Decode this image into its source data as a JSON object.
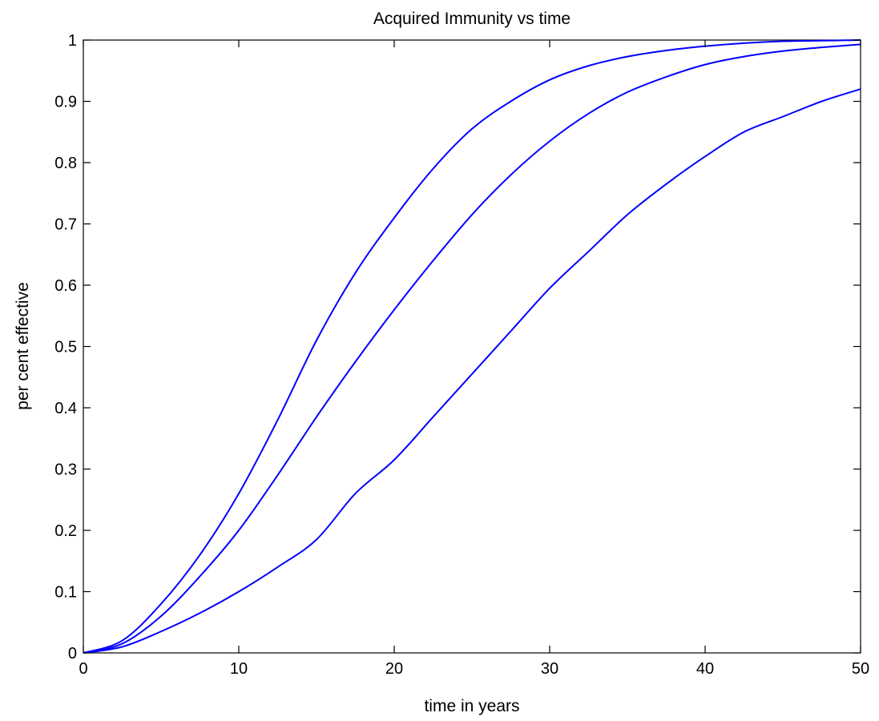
{
  "chart_data": {
    "type": "line",
    "title": "Acquired Immunity vs time",
    "xlabel": "time in years",
    "ylabel": "per cent effective",
    "xlim": [
      0,
      50
    ],
    "ylim": [
      0,
      1
    ],
    "xticks": [
      0,
      10,
      20,
      30,
      40,
      50
    ],
    "xtick_labels": [
      "0",
      "10",
      "20",
      "30",
      "40",
      "50"
    ],
    "yticks": [
      0,
      0.1,
      0.2,
      0.3,
      0.4,
      0.5,
      0.6,
      0.7,
      0.8,
      0.9,
      1
    ],
    "ytick_labels": [
      "0",
      "0.1",
      "0.2",
      "0.3",
      "0.4",
      "0.5",
      "0.6",
      "0.7",
      "0.8",
      "0.9",
      "1"
    ],
    "grid": false,
    "line_color": "#0000ff",
    "series": [
      {
        "x": [
          0,
          2.5,
          5,
          7.5,
          10,
          12.5,
          15,
          17.5,
          20,
          22.5,
          25,
          27.5,
          30,
          32.5,
          35,
          37.5,
          40,
          42.5,
          45,
          47.5,
          50
        ],
        "y": [
          0,
          0.02,
          0.08,
          0.16,
          0.26,
          0.38,
          0.51,
          0.62,
          0.71,
          0.79,
          0.855,
          0.9,
          0.935,
          0.958,
          0.973,
          0.983,
          0.99,
          0.995,
          0.998,
          0.999,
          1.0
        ]
      },
      {
        "x": [
          0,
          2.5,
          5,
          7.5,
          10,
          12.5,
          15,
          17.5,
          20,
          22.5,
          25,
          27.5,
          30,
          32.5,
          35,
          37.5,
          40,
          42.5,
          45,
          47.5,
          50
        ],
        "y": [
          0,
          0.015,
          0.06,
          0.125,
          0.2,
          0.29,
          0.385,
          0.475,
          0.56,
          0.64,
          0.715,
          0.78,
          0.835,
          0.88,
          0.915,
          0.94,
          0.96,
          0.973,
          0.982,
          0.988,
          0.993
        ]
      },
      {
        "x": [
          0,
          2.5,
          5,
          7.5,
          10,
          12.5,
          15,
          17.5,
          20,
          22.5,
          25,
          27.5,
          30,
          32.5,
          35,
          37.5,
          40,
          42.5,
          45,
          47.5,
          50
        ],
        "y": [
          0,
          0.01,
          0.035,
          0.065,
          0.1,
          0.14,
          0.185,
          0.26,
          0.315,
          0.385,
          0.455,
          0.525,
          0.595,
          0.655,
          0.715,
          0.765,
          0.81,
          0.85,
          0.875,
          0.9,
          0.92
        ]
      }
    ]
  }
}
